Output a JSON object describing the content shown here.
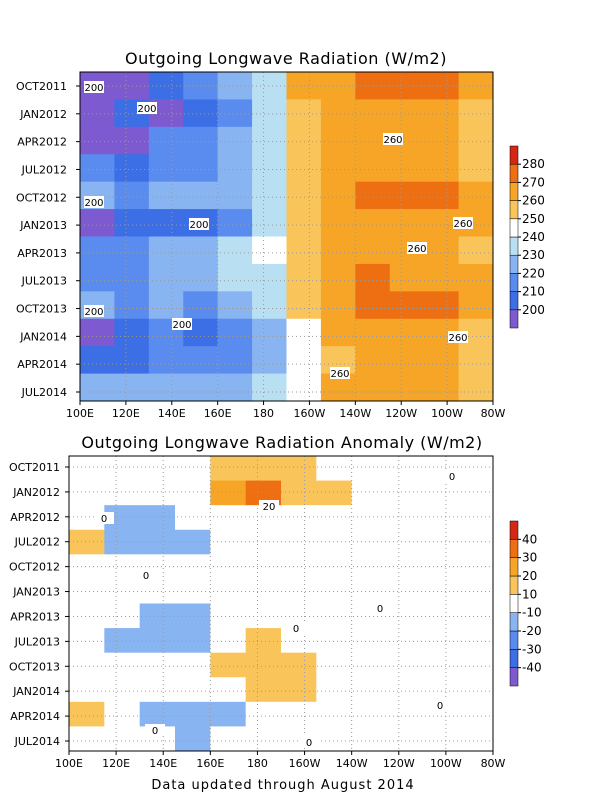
{
  "footer": "Data updated through August 2014",
  "chart_data": [
    {
      "type": "heatmap",
      "title": "Outgoing Longwave Radiation (W/m2)",
      "xlabel": "",
      "ylabel": "",
      "x_ticks": [
        "100E",
        "120E",
        "140E",
        "160E",
        "180",
        "160W",
        "140W",
        "120W",
        "100W",
        "80W"
      ],
      "y_ticks": [
        "OCT2011",
        "JAN2012",
        "APR2012",
        "JUL2012",
        "OCT2012",
        "JAN2013",
        "APR2013",
        "JUL2013",
        "OCT2013",
        "JAN2014",
        "APR2014",
        "JUL2014"
      ],
      "colorbar_levels": [
        200,
        210,
        220,
        230,
        240,
        250,
        260,
        270,
        280
      ],
      "colorbar_colors": [
        "#7e5ad0",
        "#3c6ee6",
        "#5a8cf0",
        "#88b4f2",
        "#b8e0f2",
        "#ffffff",
        "#f9c55b",
        "#f6a526",
        "#ee6e12",
        "#d42814"
      ],
      "contour_labels": [
        "200",
        "200",
        "200",
        "200",
        "200",
        "200",
        "260",
        "260",
        "260",
        "260",
        "260"
      ],
      "columns": [
        [
          190,
          198,
          194,
          212,
          224,
          196,
          214,
          218,
          222,
          196,
          206,
          226
        ],
        [
          196,
          204,
          198,
          206,
          218,
          200,
          212,
          216,
          214,
          200,
          208,
          220
        ],
        [
          204,
          196,
          210,
          214,
          220,
          208,
          222,
          224,
          220,
          214,
          212,
          224
        ],
        [
          212,
          200,
          214,
          218,
          222,
          200,
          224,
          226,
          218,
          202,
          212,
          222
        ],
        [
          220,
          214,
          222,
          226,
          228,
          216,
          230,
          232,
          226,
          216,
          214,
          222
        ],
        [
          236,
          230,
          234,
          236,
          238,
          234,
          240,
          238,
          234,
          226,
          224,
          232
        ],
        [
          262,
          256,
          254,
          254,
          252,
          250,
          254,
          256,
          256,
          248,
          246,
          248
        ],
        [
          268,
          264,
          260,
          262,
          264,
          262,
          264,
          266,
          268,
          262,
          258,
          260
        ],
        [
          272,
          268,
          262,
          266,
          270,
          268,
          266,
          270,
          272,
          266,
          264,
          262
        ],
        [
          272,
          268,
          262,
          268,
          272,
          268,
          264,
          268,
          272,
          266,
          264,
          262
        ],
        [
          270,
          266,
          260,
          266,
          270,
          266,
          262,
          266,
          270,
          264,
          262,
          260
        ],
        [
          262,
          258,
          254,
          258,
          262,
          260,
          258,
          260,
          262,
          258,
          258,
          256
        ]
      ]
    },
    {
      "type": "heatmap",
      "title": "Outgoing Longwave Radiation Anomaly (W/m2)",
      "xlabel": "",
      "ylabel": "",
      "x_ticks": [
        "100E",
        "120E",
        "140E",
        "160E",
        "180",
        "160W",
        "140W",
        "120W",
        "100W",
        "80W"
      ],
      "y_ticks": [
        "OCT2011",
        "JAN2012",
        "APR2012",
        "JUL2012",
        "OCT2012",
        "JAN2013",
        "APR2013",
        "JUL2013",
        "OCT2013",
        "JAN2014",
        "APR2014",
        "JUL2014"
      ],
      "colorbar_levels": [
        -40,
        -30,
        -20,
        -10,
        10,
        20,
        30,
        40
      ],
      "colorbar_colors": [
        "#7e5ad0",
        "#3c6ee6",
        "#5a8cf0",
        "#88b4f2",
        "#ffffff",
        "#f9c55b",
        "#f6a526",
        "#ee6e12",
        "#d42814"
      ],
      "contour_labels": [
        "20",
        "0",
        "0",
        "0",
        "0",
        "0",
        "0",
        "0",
        "0"
      ],
      "columns": [
        [
          0,
          2,
          -4,
          14,
          0,
          -2,
          -4,
          -6,
          0,
          4,
          12,
          2
        ],
        [
          2,
          -4,
          -14,
          -12,
          -4,
          -2,
          -6,
          -16,
          -4,
          -2,
          -4,
          0
        ],
        [
          4,
          -6,
          -16,
          -14,
          -6,
          -4,
          -14,
          -16,
          -6,
          -8,
          -14,
          -6
        ],
        [
          6,
          8,
          -4,
          -12,
          -4,
          -2,
          -12,
          -12,
          -4,
          -10,
          -18,
          -12
        ],
        [
          14,
          24,
          2,
          -2,
          2,
          0,
          -4,
          2,
          14,
          6,
          -14,
          -10
        ],
        [
          16,
          32,
          4,
          0,
          2,
          0,
          -2,
          14,
          16,
          10,
          -6,
          -4
        ],
        [
          12,
          18,
          2,
          -2,
          0,
          2,
          -2,
          4,
          12,
          12,
          -2,
          0
        ],
        [
          6,
          10,
          0,
          -4,
          -2,
          0,
          -2,
          0,
          6,
          4,
          -2,
          -2
        ],
        [
          0,
          4,
          -2,
          -2,
          -4,
          -2,
          -2,
          -2,
          0,
          2,
          -4,
          -2
        ],
        [
          0,
          2,
          -2,
          -4,
          -2,
          0,
          -2,
          -2,
          -4,
          -2,
          -2,
          -2
        ],
        [
          2,
          2,
          0,
          0,
          -2,
          0,
          -2,
          -4,
          -2,
          0,
          2,
          -2
        ],
        [
          -2,
          0,
          -2,
          -2,
          -2,
          -2,
          0,
          -2,
          -2,
          -2,
          -4,
          -2
        ]
      ]
    }
  ]
}
